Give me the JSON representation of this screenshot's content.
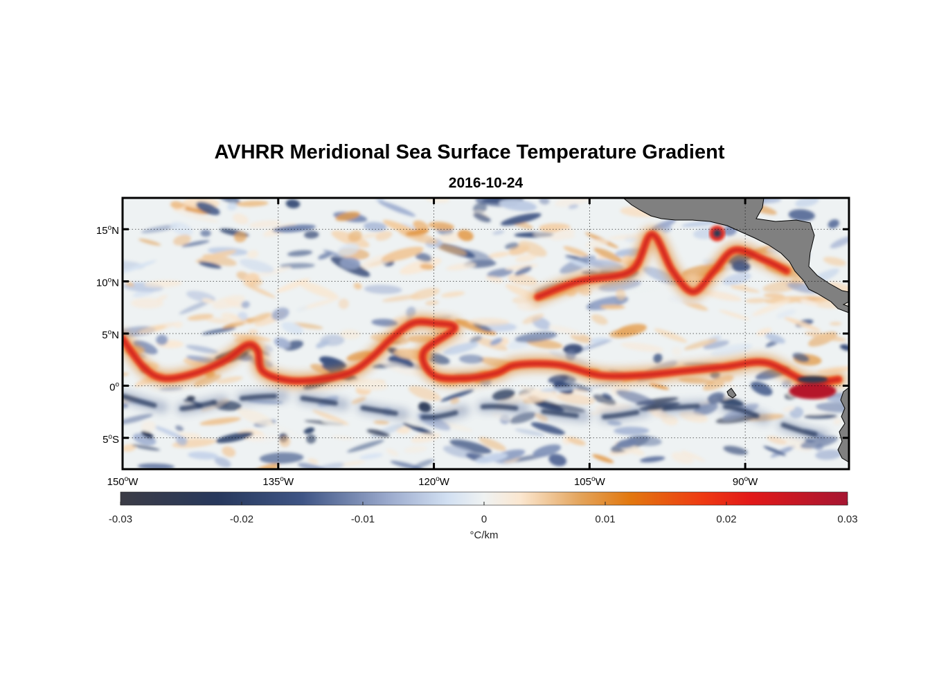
{
  "title": "AVHRR Meridional Sea Surface Temperature Gradient",
  "subtitle": "2016-10-24",
  "chart_data": {
    "type": "heatmap",
    "title": "AVHRR Meridional Sea Surface Temperature Gradient",
    "subtitle": "2016-10-24",
    "variable": "meridional SST gradient",
    "units": "°C/km",
    "lon_range": [
      -150,
      -80
    ],
    "lat_range": [
      -8,
      18
    ],
    "x_ticks": [
      {
        "value": -150,
        "deg": "150",
        "hemi": "W"
      },
      {
        "value": -135,
        "deg": "135",
        "hemi": "W"
      },
      {
        "value": -120,
        "deg": "120",
        "hemi": "W"
      },
      {
        "value": -105,
        "deg": "105",
        "hemi": "W"
      },
      {
        "value": -90,
        "deg": "90",
        "hemi": "W"
      }
    ],
    "y_ticks": [
      {
        "value": 15,
        "deg": "15",
        "hemi": "N"
      },
      {
        "value": 10,
        "deg": "10",
        "hemi": "N"
      },
      {
        "value": 5,
        "deg": "5",
        "hemi": "N"
      },
      {
        "value": 0,
        "deg": "0",
        "hemi": ""
      },
      {
        "value": -5,
        "deg": "5",
        "hemi": "S"
      }
    ],
    "grid": "dotted",
    "colorbar": {
      "label": "°C/km",
      "range": [
        -0.03,
        0.03
      ],
      "ticks": [
        {
          "value": -0.03,
          "label": "-0.03"
        },
        {
          "value": -0.02,
          "label": "-0.02"
        },
        {
          "value": -0.01,
          "label": "-0.01"
        },
        {
          "value": 0,
          "label": "0"
        },
        {
          "value": 0.01,
          "label": "0.01"
        },
        {
          "value": 0.02,
          "label": "0.02"
        },
        {
          "value": 0.03,
          "label": "0.03"
        }
      ],
      "colors": [
        {
          "v": -0.03,
          "c": "#3c3c46"
        },
        {
          "v": -0.022,
          "c": "#27385c"
        },
        {
          "v": -0.015,
          "c": "#3f5585"
        },
        {
          "v": -0.008,
          "c": "#9aa9cc"
        },
        {
          "v": -0.003,
          "c": "#d2e0f2"
        },
        {
          "v": 0,
          "c": "#eff2f2"
        },
        {
          "v": 0.003,
          "c": "#fbe7d0"
        },
        {
          "v": 0.008,
          "c": "#e3a35a"
        },
        {
          "v": 0.012,
          "c": "#e2780f"
        },
        {
          "v": 0.018,
          "c": "#ee3a12"
        },
        {
          "v": 0.022,
          "c": "#e21818"
        },
        {
          "v": 0.03,
          "c": "#a61632"
        }
      ]
    },
    "features": [
      {
        "name": "equatorial front (tropical instability waves)",
        "sign": "positive",
        "points": [
          [
            -150,
            4.5
          ],
          [
            -148,
            1.8
          ],
          [
            -146,
            0.7
          ],
          [
            -143,
            1.2
          ],
          [
            -140,
            2.5
          ],
          [
            -138,
            3.9
          ],
          [
            -137,
            3.4
          ],
          [
            -136.5,
            1.4
          ],
          [
            -134,
            0.5
          ],
          [
            -131,
            0.6
          ],
          [
            -128,
            1.3
          ],
          [
            -126,
            2.7
          ],
          [
            -124,
            4.6
          ],
          [
            -122,
            6.0
          ],
          [
            -120,
            6.0
          ],
          [
            -118,
            5.5
          ],
          [
            -121,
            3.2
          ],
          [
            -120,
            1.0
          ],
          [
            -117,
            0.7
          ],
          [
            -114,
            1.2
          ],
          [
            -112,
            2.0
          ],
          [
            -108,
            2.0
          ],
          [
            -104,
            1.0
          ],
          [
            -100,
            1.0
          ],
          [
            -96,
            1.4
          ],
          [
            -92,
            1.8
          ],
          [
            -88,
            2.2
          ],
          [
            -84,
            0.4
          ],
          [
            -81,
            0.6
          ]
        ]
      },
      {
        "name": "negative band south of equator",
        "sign": "negative",
        "points": [
          [
            -150,
            -1.0
          ],
          [
            -145,
            -2.2
          ],
          [
            -140,
            -1.4
          ],
          [
            -135,
            -1.0
          ],
          [
            -130,
            -1.6
          ],
          [
            -124,
            -2.6
          ],
          [
            -120,
            -3.0
          ],
          [
            -115,
            -2.0
          ],
          [
            -110,
            -2.4
          ],
          [
            -104,
            -3.0
          ],
          [
            -98,
            -2.2
          ],
          [
            -92,
            -2.0
          ],
          [
            -88,
            -3.2
          ],
          [
            -84,
            -4.5
          ],
          [
            -81,
            -5.0
          ]
        ]
      },
      {
        "name": "coastal positive front off Central America",
        "sign": "positive",
        "points": [
          [
            -110,
            8.5
          ],
          [
            -106,
            10.0
          ],
          [
            -101,
            11.0
          ],
          [
            -99,
            14.5
          ],
          [
            -97,
            11.0
          ],
          [
            -95,
            9.0
          ],
          [
            -93,
            11.0
          ],
          [
            -91,
            13.0
          ],
          [
            -88,
            12.0
          ],
          [
            -86,
            11.0
          ]
        ]
      }
    ],
    "land_color": "#808080",
    "land_regions": [
      "Mexico / Central America coastline",
      "Galápagos Islands",
      "South America coast (Ecuador/Peru)"
    ]
  }
}
